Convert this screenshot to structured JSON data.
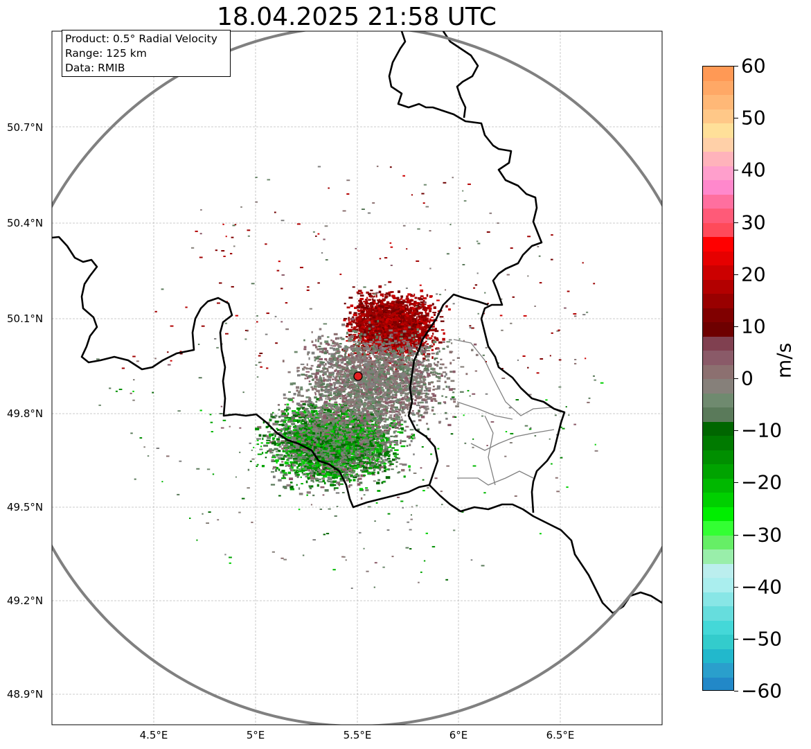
{
  "title": "18.04.2025 21:58 UTC",
  "info_box": {
    "product": "Product: 0.5° Radial Velocity",
    "range": "Range: 125 km",
    "data": "Data: RMIB"
  },
  "lat_labels": [
    "50.7°N",
    "50.4°N",
    "50.1°N",
    "49.8°N",
    "49.5°N",
    "49.2°N",
    "48.9°N"
  ],
  "lon_labels": [
    "4.5°E",
    "5°E",
    "5.5°E",
    "6°E",
    "6.5°E"
  ],
  "colorbar": {
    "unit": "m/s",
    "ticks": [
      "60",
      "50",
      "40",
      "30",
      "20",
      "10",
      "0",
      "−10",
      "−20",
      "−30",
      "−40",
      "−50",
      "−60"
    ],
    "colors_top_to_bottom": [
      "#ff9955",
      "#ffa866",
      "#ffb877",
      "#ffc888",
      "#ffe099",
      "#ffd0a8",
      "#ffb3bb",
      "#ff9fcc",
      "#ff88cc",
      "#ff6f9f",
      "#ff5a78",
      "#ff4a5a",
      "#ff0000",
      "#e60000",
      "#cc0000",
      "#b30000",
      "#990000",
      "#800000",
      "#6e0000",
      "#804050",
      "#8a5a68",
      "#8c7070",
      "#86807a",
      "#6f8a6f",
      "#5a7a5a",
      "#006600",
      "#007a00",
      "#008f00",
      "#00a300",
      "#00b800",
      "#00d000",
      "#00ee00",
      "#33ff33",
      "#66ee66",
      "#99eeaa",
      "#bbeeee",
      "#aaeeee",
      "#88e6e6",
      "#66dddd",
      "#44d8d8",
      "#33cccc",
      "#22b8cc",
      "#2a9fcc",
      "#2288c8"
    ],
    "range": [
      -60,
      60
    ]
  },
  "radar_site": {
    "lat": 49.914,
    "lon": 5.506
  },
  "map_extent": {
    "lon": [
      4.0,
      7.0
    ],
    "lat": [
      48.8,
      51.0
    ]
  }
}
